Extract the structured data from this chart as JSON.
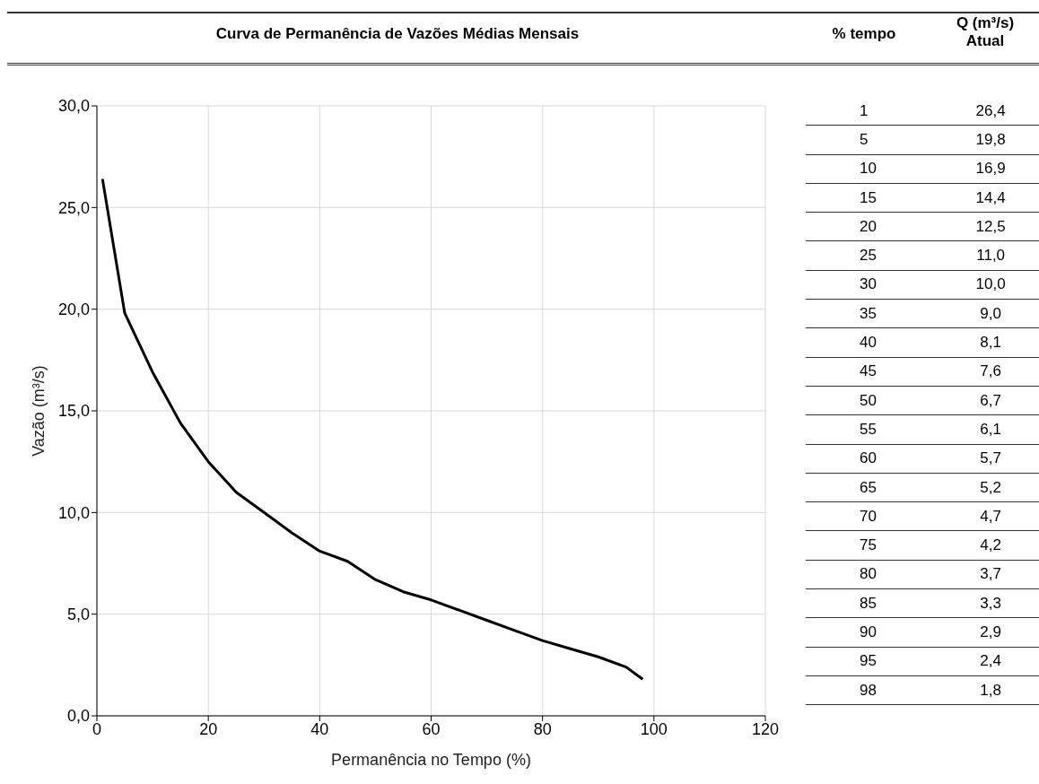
{
  "chart_data": [
    {
      "type": "line",
      "title": "Curva de Permanência de Vazões Médias Mensais",
      "xlabel": "Permanência no Tempo (%)",
      "ylabel": "Vazão (m³/s)",
      "x": [
        1,
        5,
        10,
        15,
        20,
        25,
        30,
        35,
        40,
        45,
        50,
        55,
        60,
        65,
        70,
        75,
        80,
        85,
        90,
        95,
        98
      ],
      "series": [
        {
          "color": "#000000",
          "values": [
            26.4,
            19.8,
            16.9,
            14.4,
            12.5,
            11.0,
            10.0,
            9.0,
            8.1,
            7.6,
            6.7,
            6.1,
            5.7,
            5.2,
            4.7,
            4.2,
            3.7,
            3.3,
            2.9,
            2.4,
            1.8
          ]
        }
      ],
      "xlim": [
        0,
        120
      ],
      "xticks": [
        0,
        20,
        40,
        60,
        80,
        100,
        120
      ],
      "ylim": [
        0,
        30
      ],
      "yticks": [
        {
          "value": 0,
          "label": "0,0"
        },
        {
          "value": 5,
          "label": "5,0"
        },
        {
          "value": 10,
          "label": "10,0"
        },
        {
          "value": 15,
          "label": "15,0"
        },
        {
          "value": 20,
          "label": "20,0"
        },
        {
          "value": 25,
          "label": "25,0"
        },
        {
          "value": 30,
          "label": "30,0"
        }
      ],
      "grid": true,
      "marker": "none",
      "line_style": "solid"
    },
    {
      "type": "other",
      "xlabel": "% tempo",
      "ylabel": "Q (m³/s)\nAtual",
      "categories": [
        "1",
        "5",
        "10",
        "15",
        "20",
        "25",
        "30",
        "35",
        "40",
        "45",
        "50",
        "55",
        "60",
        "65",
        "70",
        "75",
        "80",
        "85",
        "90",
        "95",
        "98"
      ],
      "value_labels": [
        "26,4",
        "19,8",
        "16,9",
        "14,4",
        "12,5",
        "11,0",
        "10,0",
        "9,0",
        "8,1",
        "7,6",
        "6,7",
        "6,1",
        "5,7",
        "5,2",
        "4,7",
        "4,2",
        "3,7",
        "3,3",
        "2,9",
        "2,4",
        "1,8"
      ]
    }
  ]
}
